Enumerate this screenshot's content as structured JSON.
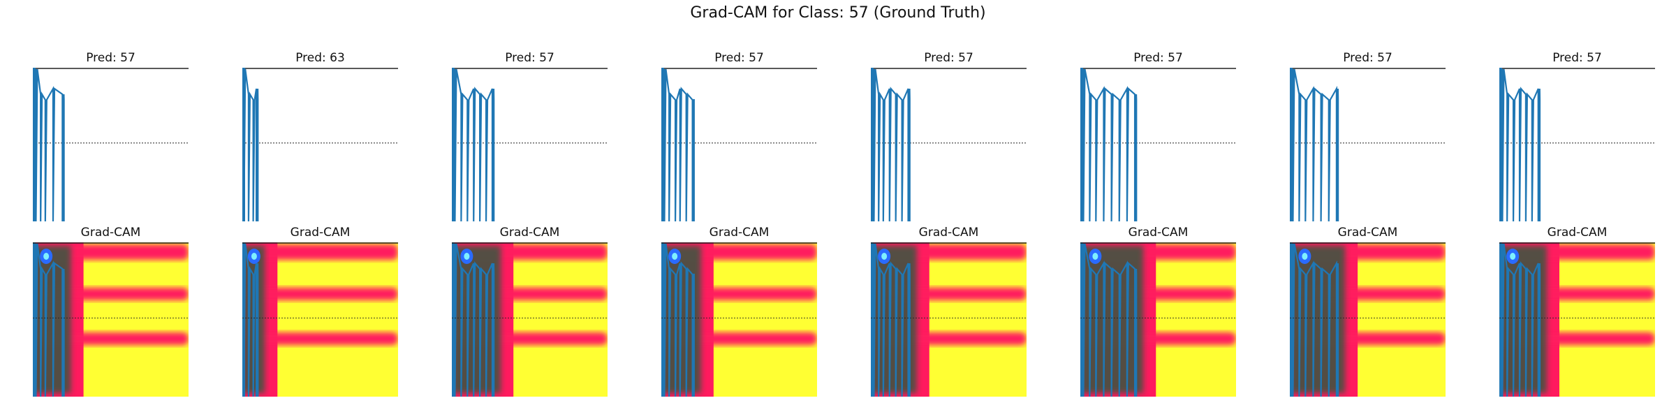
{
  "suptitle": "Grad-CAM for Class: 57 (Ground Truth)",
  "colors": {
    "signal": "#1f77b4",
    "heat_low": "#ffff33",
    "heat_mid": "#ff1a5e",
    "heat_high": "#1f5e3a",
    "heat_peak": "#2a6bff",
    "baseline": "#000000"
  },
  "chart_data": [
    {
      "type": "line",
      "title": "Pred: 57",
      "peaks": [
        0.02,
        0.05,
        0.08,
        0.13,
        0.19
      ],
      "tail": 0.2
    },
    {
      "type": "line",
      "title": "Pred: 63",
      "peaks": [
        0.01,
        0.04,
        0.07,
        0.09
      ],
      "tail": 0.1
    },
    {
      "type": "line",
      "title": "Pred: 57",
      "peaks": [
        0.02,
        0.06,
        0.1,
        0.14,
        0.18,
        0.22,
        0.26
      ],
      "tail": 0.27
    },
    {
      "type": "line",
      "title": "Pred: 57",
      "peaks": [
        0.02,
        0.05,
        0.09,
        0.12,
        0.16,
        0.2
      ],
      "tail": 0.21
    },
    {
      "type": "line",
      "title": "Pred: 57",
      "peaks": [
        0.02,
        0.05,
        0.08,
        0.12,
        0.16,
        0.2,
        0.24
      ],
      "tail": 0.25
    },
    {
      "type": "line",
      "title": "Pred: 57",
      "peaks": [
        0.02,
        0.06,
        0.1,
        0.15,
        0.2,
        0.25,
        0.3,
        0.35
      ],
      "tail": 0.36
    },
    {
      "type": "line",
      "title": "Pred: 57",
      "peaks": [
        0.02,
        0.06,
        0.1,
        0.15,
        0.2,
        0.25,
        0.3
      ],
      "tail": 0.31
    },
    {
      "type": "line",
      "title": "Pred: 57",
      "peaks": [
        0.02,
        0.05,
        0.09,
        0.13,
        0.17,
        0.21,
        0.25
      ],
      "tail": 0.26
    }
  ],
  "heatmap_title": "Grad-CAM"
}
